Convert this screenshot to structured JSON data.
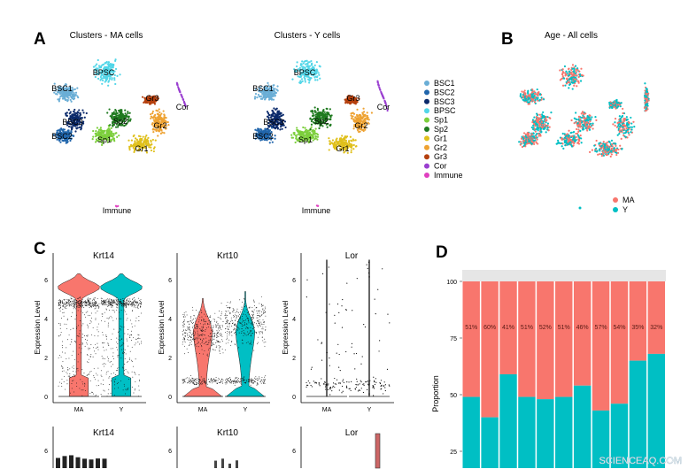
{
  "panels": {
    "A": {
      "letter": "A",
      "titles": [
        "Clusters - MA cells",
        "Clusters - Y cells"
      ],
      "immune_label": "Immune"
    },
    "B": {
      "letter": "B",
      "title": "Age - All cells"
    },
    "C": {
      "letter": "C",
      "ylabel": "Expression Level"
    },
    "D": {
      "letter": "D",
      "ylabel": "Proportion"
    }
  },
  "clusters": [
    {
      "name": "BSC1",
      "color": "#6aaed6"
    },
    {
      "name": "BSC2",
      "color": "#2166ac"
    },
    {
      "name": "BSC3",
      "color": "#0b2a6b"
    },
    {
      "name": "BPSC",
      "color": "#52d6e8"
    },
    {
      "name": "Sp1",
      "color": "#7ccf3c"
    },
    {
      "name": "Sp2",
      "color": "#1f7a1f"
    },
    {
      "name": "Gr1",
      "color": "#e0c01c"
    },
    {
      "name": "Gr2",
      "color": "#eea232"
    },
    {
      "name": "Gr3",
      "color": "#b5400e"
    },
    {
      "name": "Cor",
      "color": "#9a3fd0"
    },
    {
      "name": "Immune",
      "color": "#e040c0"
    }
  ],
  "age_groups": [
    {
      "name": "MA",
      "color": "#F8766D"
    },
    {
      "name": "Y",
      "color": "#00BFC4"
    }
  ],
  "chart_data": [
    {
      "type": "violin",
      "panel": "C",
      "row": 1,
      "genes": [
        "Krt14",
        "Krt10",
        "Lor"
      ],
      "categories": [
        "MA",
        "Y"
      ],
      "ylabel": "Expression Level",
      "yticks": [
        0,
        2,
        4,
        6
      ],
      "ylim": [
        0,
        7
      ]
    },
    {
      "type": "violin",
      "panel": "C",
      "row": 2,
      "genes": [
        "Krt14",
        "Krt10",
        "Lor"
      ],
      "yticks": [
        6
      ]
    },
    {
      "type": "bar",
      "stacked": true,
      "panel": "D",
      "ylabel": "Proportion",
      "yticks": [
        25,
        50,
        75,
        100
      ],
      "ylim": [
        0,
        100
      ],
      "series": [
        {
          "name": "MA",
          "values": [
            51,
            60,
            41,
            51,
            52,
            51,
            46,
            57,
            54,
            35,
            32
          ]
        },
        {
          "name": "Y",
          "values": [
            49,
            40,
            59,
            49,
            48,
            49,
            54,
            43,
            46,
            65,
            68
          ]
        }
      ],
      "data_labels": [
        "51%",
        "60%",
        "41%",
        "51%",
        "52%",
        "51%",
        "46%",
        "57%",
        "54%",
        "35%",
        "32%"
      ]
    }
  ],
  "watermark": "SCIENCEAQ.COM"
}
